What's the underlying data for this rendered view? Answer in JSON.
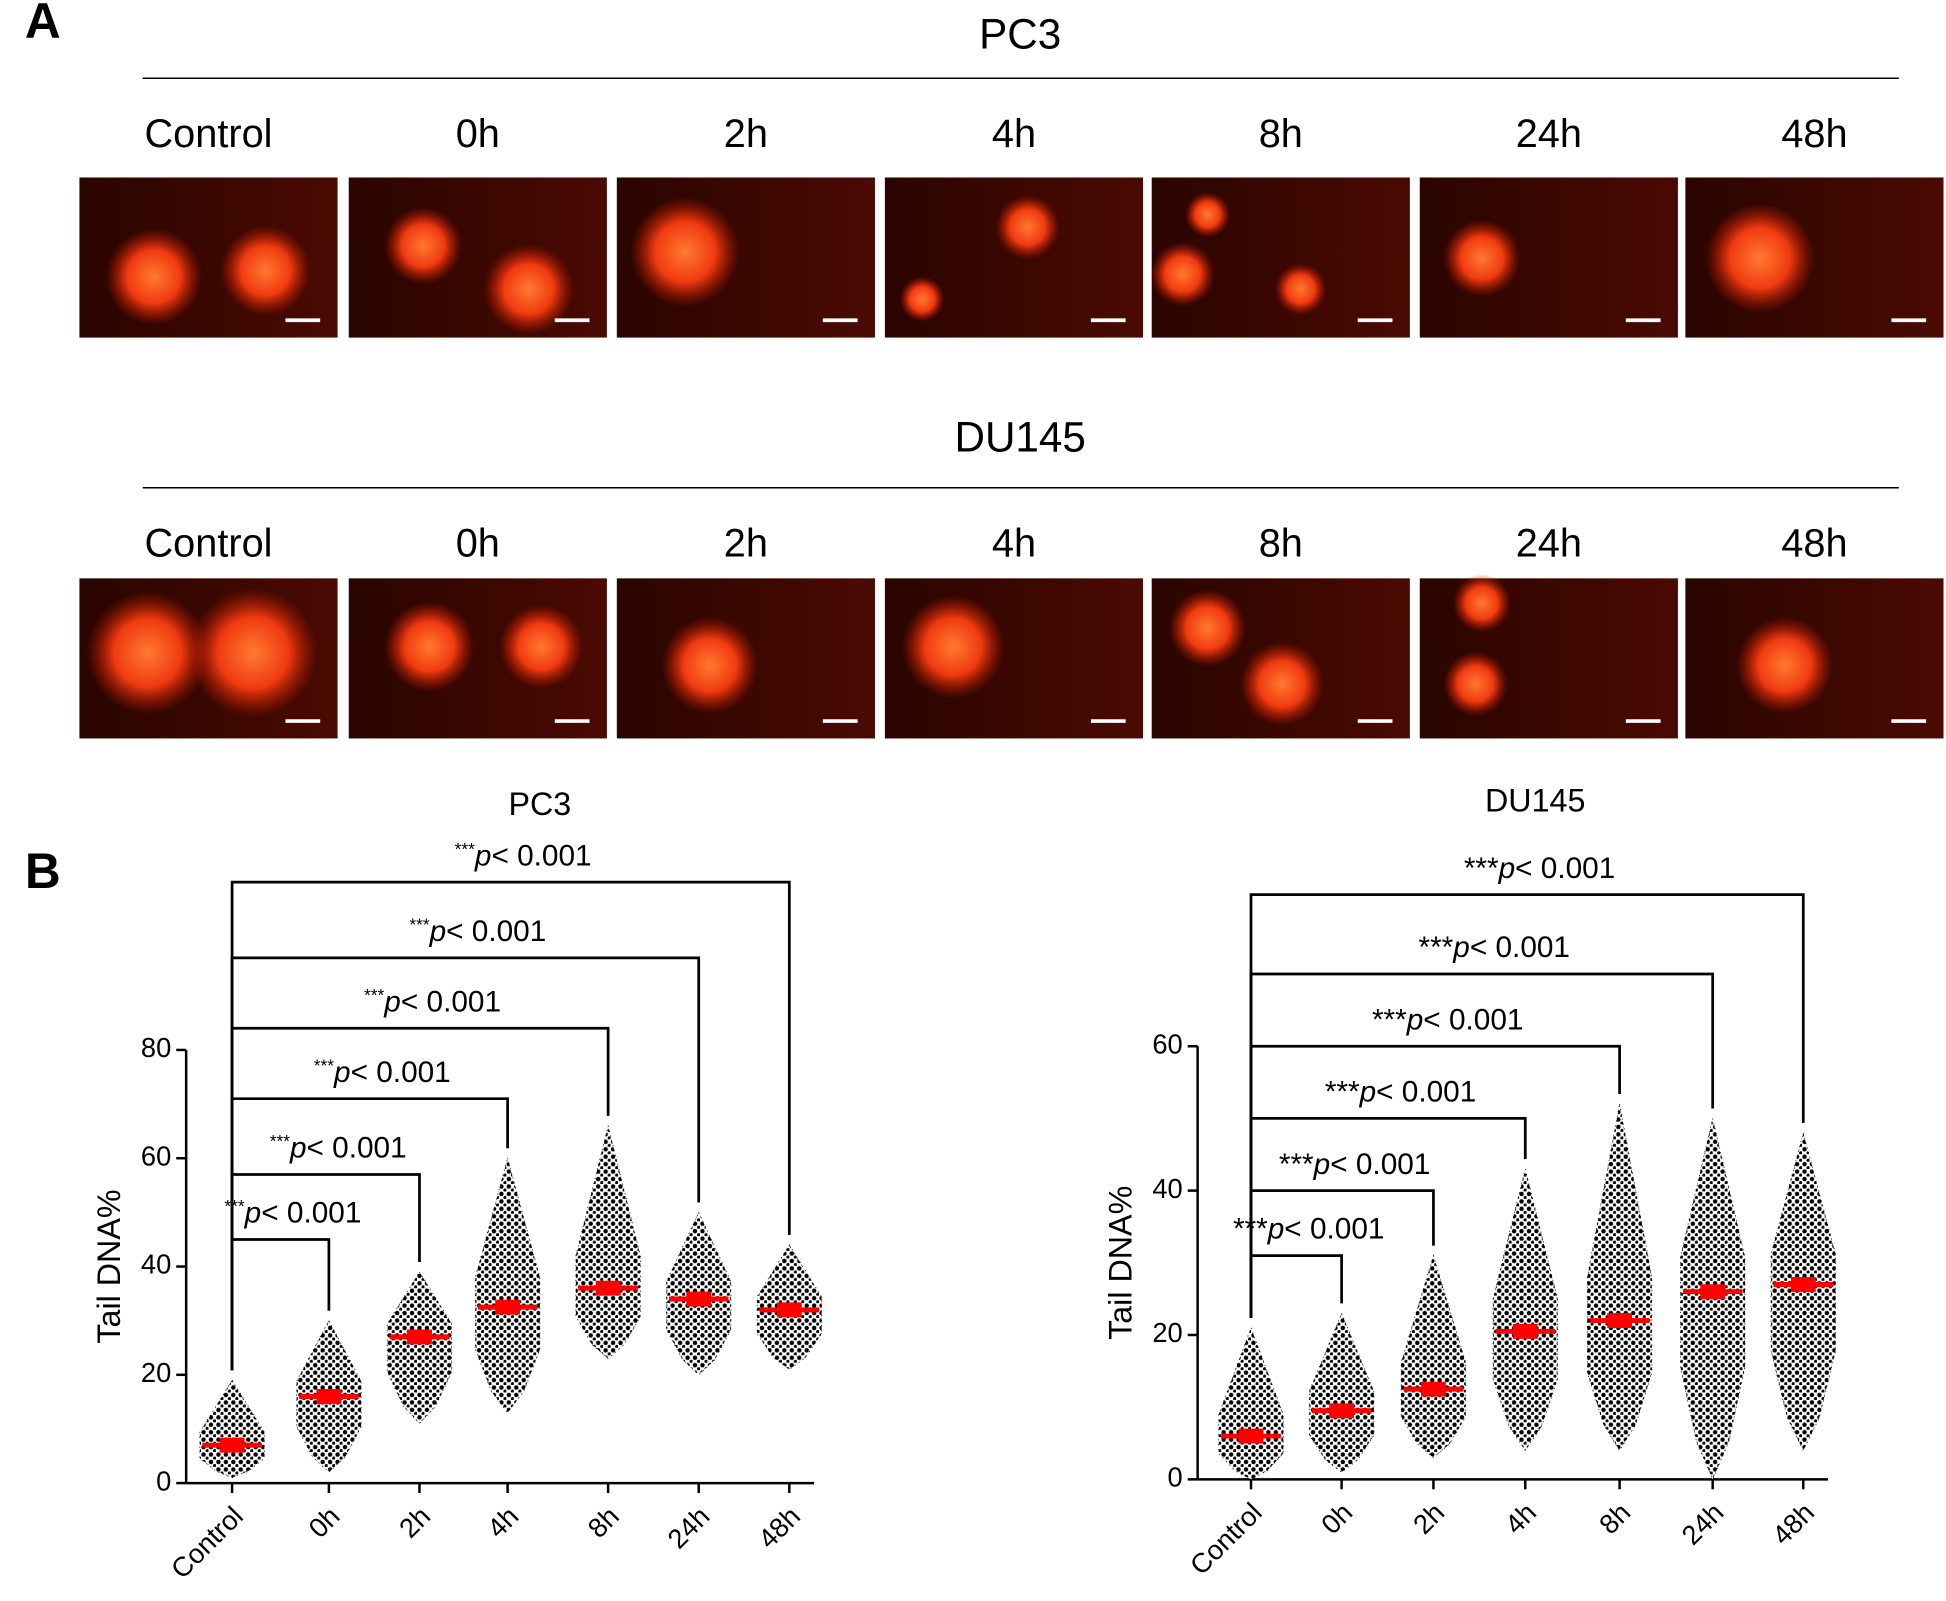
{
  "panel_a": {
    "letter": "A",
    "rows": [
      {
        "title": "PC3",
        "columns": [
          "Control",
          "0h",
          "2h",
          "4h",
          "8h",
          "24h",
          "48h"
        ]
      },
      {
        "title": "DU145",
        "columns": [
          "Control",
          "0h",
          "2h",
          "4h",
          "8h",
          "24h",
          "48h"
        ]
      }
    ]
  },
  "panel_b": {
    "letter": "B"
  },
  "chart_data": [
    {
      "type": "dot_plot",
      "title": "PC3",
      "y_label": "Tail DNA%",
      "categories": [
        "Control",
        "0h",
        "2h",
        "4h",
        "8h",
        "24h",
        "48h"
      ],
      "mean": [
        7,
        16,
        27,
        32.5,
        36,
        34,
        32
      ],
      "min": [
        1,
        2,
        11,
        13,
        23,
        20,
        21
      ],
      "max": [
        19,
        30,
        39,
        60,
        66,
        50,
        44
      ],
      "ylim": [
        0,
        80
      ],
      "yticks": [
        0,
        20,
        40,
        60,
        80
      ],
      "point_color": "#000000",
      "mean_color": "#ff0000",
      "brackets": [
        {
          "from": 0,
          "to": 1,
          "y": 45,
          "stars": "***",
          "p": "p",
          "rest": "< 0.001"
        },
        {
          "from": 0,
          "to": 2,
          "y": 57,
          "stars": "***",
          "p": "p",
          "rest": "< 0.001"
        },
        {
          "from": 0,
          "to": 3,
          "y": 71,
          "stars": "***",
          "p": "p",
          "rest": "< 0.001"
        },
        {
          "from": 0,
          "to": 4,
          "y": 84,
          "stars": "***",
          "p": "p",
          "rest": "< 0.001"
        },
        {
          "from": 0,
          "to": 5,
          "y": 97,
          "stars": "***",
          "p": "p",
          "rest": "< 0.001"
        },
        {
          "from": 0,
          "to": 6,
          "y": 111,
          "stars": "***",
          "p": "p",
          "rest": "< 0.001"
        }
      ]
    },
    {
      "type": "dot_plot",
      "title": "DU145",
      "y_label": "Tail DNA%",
      "categories": [
        "Control",
        "0h",
        "2h",
        "4h",
        "8h",
        "24h",
        "48h"
      ],
      "mean": [
        6,
        9.5,
        12.5,
        20.5,
        22,
        26,
        27
      ],
      "min": [
        0,
        1,
        3,
        4,
        4,
        0,
        4
      ],
      "max": [
        21,
        23,
        31,
        43,
        52,
        50,
        48
      ],
      "ylim": [
        0,
        60
      ],
      "yticks": [
        0,
        20,
        40,
        60
      ],
      "point_color": "#000000",
      "mean_color": "#ff0000",
      "brackets": [
        {
          "from": 0,
          "to": 1,
          "y": 31,
          "stars": "***",
          "p": "p",
          "rest": "< 0.001"
        },
        {
          "from": 0,
          "to": 2,
          "y": 40,
          "stars": "***",
          "p": "p",
          "rest": "< 0.001"
        },
        {
          "from": 0,
          "to": 3,
          "y": 50,
          "stars": "***",
          "p": "p",
          "rest": "< 0.001"
        },
        {
          "from": 0,
          "to": 4,
          "y": 60,
          "stars": "***",
          "p": "p",
          "rest": "< 0.001"
        },
        {
          "from": 0,
          "to": 5,
          "y": 70,
          "stars": "***",
          "p": "p",
          "rest": "< 0.001"
        },
        {
          "from": 0,
          "to": 6,
          "y": 81,
          "stars": "***",
          "p": "p",
          "rest": "< 0.001"
        }
      ]
    }
  ]
}
